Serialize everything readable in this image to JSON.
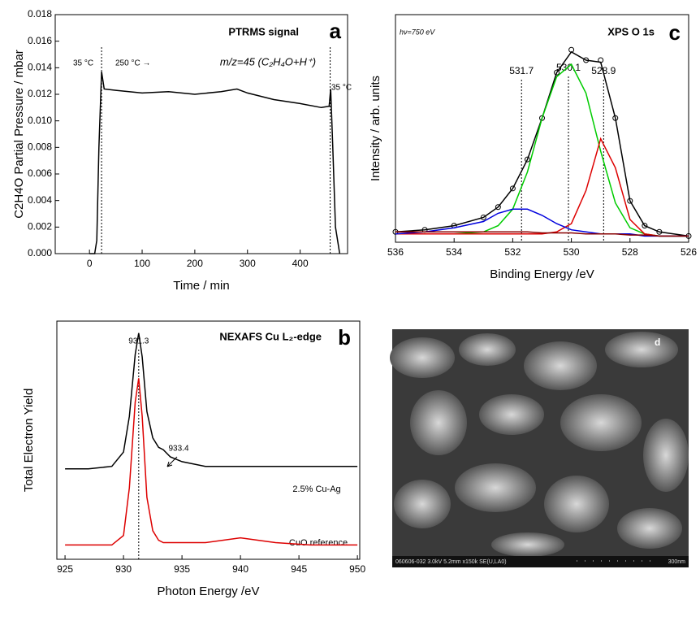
{
  "chart_data": [
    {
      "type": "line",
      "label": "a",
      "title": "PTRMS signal",
      "subtitle": "m/z=45 (C₂H₄O+H⁺)",
      "xlabel": "Time / min",
      "ylabel": "C2H4O Partial Pressure / mbar",
      "annotations": [
        "35 °C",
        "250 °C →",
        "35 °C"
      ],
      "xlim": [
        -65,
        490
      ],
      "xticks": [
        0,
        100,
        200,
        300,
        400
      ],
      "ylim": [
        0,
        0.018
      ],
      "yticks": [
        {
          "value": 0,
          "label": "0.000"
        },
        {
          "value": 0.002,
          "label": "0.002"
        },
        {
          "value": 0.004,
          "label": "0.004"
        },
        {
          "value": 0.006,
          "label": "0.006"
        },
        {
          "value": 0.008,
          "label": "0.008"
        },
        {
          "value": 0.01,
          "label": "0.010"
        },
        {
          "value": 0.012,
          "label": "0.012"
        },
        {
          "value": 0.014,
          "label": "0.014"
        },
        {
          "value": 0.016,
          "label": "0.016"
        },
        {
          "value": 0.018,
          "label": "0.018"
        }
      ],
      "markers": [
        23,
        457
      ],
      "x": [
        0,
        10,
        14,
        18,
        23,
        28,
        50,
        100,
        150,
        200,
        250,
        280,
        300,
        350,
        400,
        440,
        455,
        458,
        462,
        467,
        475
      ],
      "series": [
        {
          "color": "#000000",
          "values": [
            0,
            0,
            0.001,
            0.008,
            0.0137,
            0.0124,
            0.0123,
            0.0121,
            0.0122,
            0.012,
            0.0122,
            0.0124,
            0.0121,
            0.0116,
            0.0113,
            0.011,
            0.0111,
            0.0124,
            0.008,
            0.002,
            0
          ]
        }
      ]
    },
    {
      "type": "line",
      "label": "c",
      "title": "XPS O 1s",
      "subtitle": "hν=750 eV",
      "xlabel": "Binding Energy /eV",
      "ylabel": "Intensity / arb. units",
      "xlim": [
        536,
        526
      ],
      "xticks": [
        536,
        534,
        532,
        530,
        528,
        526
      ],
      "ylim": [
        0,
        1.1
      ],
      "peaks": [
        531.7,
        530.1,
        528.9
      ],
      "x": [
        536,
        535,
        534,
        533,
        532.5,
        532,
        531.5,
        531,
        530.5,
        530,
        529.5,
        529,
        528.5,
        528,
        527.5,
        527,
        526
      ],
      "series": [
        {
          "color": "#000000",
          "marker": "circle",
          "values": [
            0.05,
            0.06,
            0.08,
            0.12,
            0.17,
            0.26,
            0.4,
            0.6,
            0.82,
            0.93,
            0.88,
            0.88,
            0.6,
            0.2,
            0.08,
            0.05,
            0.03
          ]
        },
        {
          "color": "#000000",
          "values": [
            0.05,
            0.06,
            0.08,
            0.12,
            0.17,
            0.26,
            0.4,
            0.6,
            0.82,
            0.92,
            0.88,
            0.87,
            0.6,
            0.2,
            0.08,
            0.05,
            0.03
          ]
        },
        {
          "color": "#00cc00",
          "values": [
            0.04,
            0.04,
            0.04,
            0.05,
            0.08,
            0.16,
            0.34,
            0.6,
            0.8,
            0.86,
            0.72,
            0.44,
            0.19,
            0.07,
            0.04,
            0.03,
            0.03
          ]
        },
        {
          "color": "#dd0000",
          "values": [
            0.04,
            0.04,
            0.04,
            0.04,
            0.04,
            0.04,
            0.04,
            0.04,
            0.05,
            0.09,
            0.25,
            0.5,
            0.36,
            0.11,
            0.04,
            0.03,
            0.03
          ]
        },
        {
          "color": "#0000dd",
          "values": [
            0.04,
            0.05,
            0.07,
            0.1,
            0.14,
            0.16,
            0.16,
            0.13,
            0.09,
            0.06,
            0.05,
            0.04,
            0.04,
            0.04,
            0.03,
            0.03,
            0.03
          ]
        },
        {
          "color": "#880000",
          "values": [
            0.05,
            0.05,
            0.05,
            0.05,
            0.05,
            0.05,
            0.05,
            0.045,
            0.045,
            0.045,
            0.04,
            0.04,
            0.04,
            0.035,
            0.035,
            0.03,
            0.03
          ]
        }
      ]
    },
    {
      "type": "line",
      "label": "b",
      "title": "NEXAFS Cu L₂-edge",
      "xlabel": "Photon Energy /eV",
      "ylabel": "Total Electron Yield",
      "xlim": [
        924.3,
        950.2
      ],
      "xticks": [
        925,
        930,
        935,
        940,
        945,
        950
      ],
      "ylim": [
        0,
        1
      ],
      "peaks": [
        931.3
      ],
      "arrow_label": 933.4,
      "series_labels": [
        "2.5% Cu-Ag",
        "CuO reference"
      ],
      "x": [
        925,
        927,
        929,
        930,
        930.5,
        931,
        931.3,
        931.6,
        932,
        932.5,
        933,
        933.4,
        934,
        935,
        937,
        940,
        943,
        946,
        950
      ],
      "series": [
        {
          "color": "#000000",
          "values": [
            0.38,
            0.38,
            0.39,
            0.45,
            0.6,
            0.86,
            0.95,
            0.85,
            0.62,
            0.51,
            0.47,
            0.46,
            0.43,
            0.41,
            0.39,
            0.39,
            0.39,
            0.39,
            0.39
          ]
        },
        {
          "color": "#dd0000",
          "values": [
            0.06,
            0.06,
            0.06,
            0.1,
            0.3,
            0.66,
            0.76,
            0.6,
            0.26,
            0.12,
            0.08,
            0.07,
            0.07,
            0.07,
            0.07,
            0.09,
            0.07,
            0.06,
            0.06
          ]
        }
      ]
    }
  ],
  "image": {
    "label": "d",
    "caption": "060606-032 3.0kV 5.2mm x150k SE(U,LA0)",
    "scale_label": "300nm"
  }
}
